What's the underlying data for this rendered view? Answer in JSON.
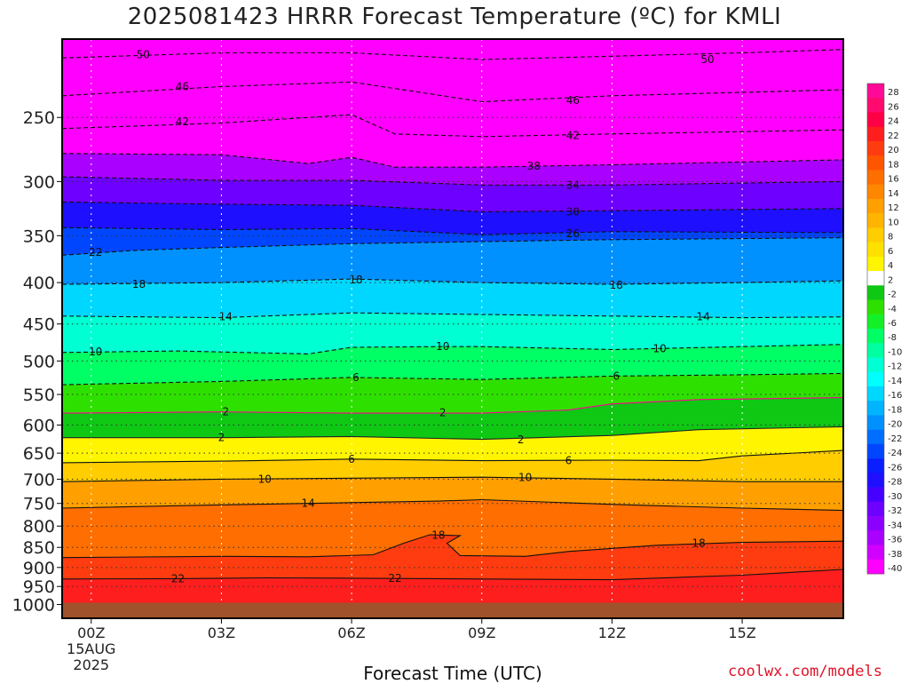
{
  "chart_data": {
    "type": "heatmap",
    "title": "2025081423 HRRR Forecast Temperature (ºC) for KMLI",
    "xlabel": "Forecast Time (UTC)",
    "ylabel": "",
    "credit": "coolwx.com/models",
    "x_ticks": [
      {
        "hour": 0,
        "label": "00Z",
        "sub": [
          "15AUG",
          "2025"
        ]
      },
      {
        "hour": 3,
        "label": "03Z"
      },
      {
        "hour": 6,
        "label": "06Z"
      },
      {
        "hour": 9,
        "label": "09Z"
      },
      {
        "hour": 12,
        "label": "12Z"
      },
      {
        "hour": 15,
        "label": "15Z"
      }
    ],
    "xlim": [
      -0.67,
      17.33
    ],
    "y_scale": "log",
    "ylim": [
      1040,
      200
    ],
    "y_ticks": [
      250,
      300,
      350,
      400,
      450,
      500,
      550,
      600,
      650,
      700,
      750,
      800,
      850,
      900,
      950,
      1000
    ],
    "surface_pressure": 995,
    "colorbar_levels": [
      28,
      26,
      24,
      22,
      20,
      18,
      16,
      14,
      12,
      10,
      8,
      6,
      4,
      2,
      -2,
      -4,
      -6,
      -8,
      -10,
      -12,
      -14,
      -16,
      -18,
      -20,
      -22,
      -24,
      -26,
      -28,
      -30,
      -32,
      -34,
      -36,
      -38,
      -40
    ],
    "colorbar_colors": [
      "#ff0a96",
      "#ff0a6e",
      "#ff0046",
      "#ff1e1e",
      "#ff3c0f",
      "#ff5500",
      "#ff6e00",
      "#ff8700",
      "#ffa000",
      "#ffb400",
      "#ffcd00",
      "#ffe100",
      "#fff500",
      "#ffffff",
      "#0ec814",
      "#2ee000",
      "#14f028",
      "#00ff64",
      "#00ffa0",
      "#00ffd2",
      "#00ffff",
      "#00d7ff",
      "#00b4ff",
      "#0091ff",
      "#006eff",
      "#0046ff",
      "#0a1eff",
      "#1e0fff",
      "#4600ff",
      "#6e00ff",
      "#8c00ff",
      "#aa00ff",
      "#d200ff",
      "#ff00ff"
    ],
    "surface_color": "#a0522d",
    "cold_extreme_color": "#ff00ff",
    "series": [
      {
        "temp": 22,
        "points": [
          [
            -0.67,
            930
          ],
          [
            2,
            929
          ],
          [
            4,
            927
          ],
          [
            6,
            928
          ],
          [
            9,
            930
          ],
          [
            12,
            932
          ],
          [
            15,
            920
          ],
          [
            17.33,
            905
          ]
        ]
      },
      {
        "temp": 18,
        "points": [
          [
            -0.67,
            875
          ],
          [
            3,
            872
          ],
          [
            5,
            873
          ],
          [
            6.5,
            868
          ],
          [
            7.2,
            840
          ],
          [
            7.8,
            820
          ],
          [
            8.5,
            822
          ],
          [
            8.2,
            840
          ],
          [
            8.5,
            870
          ],
          [
            10,
            872
          ],
          [
            11,
            860
          ],
          [
            13,
            845
          ],
          [
            15,
            838
          ],
          [
            17.33,
            835
          ]
        ]
      },
      {
        "temp": 14,
        "points": [
          [
            -0.67,
            760
          ],
          [
            2,
            755
          ],
          [
            5,
            750
          ],
          [
            8,
            745
          ],
          [
            9,
            742
          ],
          [
            12,
            752
          ],
          [
            15,
            760
          ],
          [
            17.33,
            765
          ]
        ]
      },
      {
        "temp": 10,
        "points": [
          [
            -0.67,
            705
          ],
          [
            3,
            700
          ],
          [
            6,
            698
          ],
          [
            9,
            696
          ],
          [
            12,
            700
          ],
          [
            15,
            705
          ],
          [
            17.33,
            705
          ]
        ]
      },
      {
        "temp": 6,
        "points": [
          [
            -0.67,
            668
          ],
          [
            3,
            665
          ],
          [
            6,
            661
          ],
          [
            9,
            664
          ],
          [
            12,
            663
          ],
          [
            14,
            664
          ],
          [
            15,
            655
          ],
          [
            17.33,
            645
          ]
        ]
      },
      {
        "temp": 2,
        "points": [
          [
            -0.67,
            622
          ],
          [
            3,
            622
          ],
          [
            6,
            620
          ],
          [
            9,
            625
          ],
          [
            12,
            618
          ],
          [
            14,
            608
          ],
          [
            17.33,
            603
          ]
        ]
      },
      {
        "temp": -2,
        "points": [
          [
            -0.67,
            580
          ],
          [
            3,
            578
          ],
          [
            6,
            580
          ],
          [
            9,
            580
          ],
          [
            11,
            575
          ],
          [
            12,
            565
          ],
          [
            14,
            558
          ],
          [
            17.33,
            555
          ]
        ]
      },
      {
        "temp": -6,
        "points": [
          [
            -0.67,
            535
          ],
          [
            3,
            530
          ],
          [
            6,
            524
          ],
          [
            9,
            527
          ],
          [
            12,
            522
          ],
          [
            15,
            520
          ],
          [
            17.33,
            518
          ]
        ]
      },
      {
        "temp": -10,
        "points": [
          [
            -0.67,
            488
          ],
          [
            2,
            486
          ],
          [
            5,
            490
          ],
          [
            6,
            481
          ],
          [
            8,
            480
          ],
          [
            9,
            480
          ],
          [
            12,
            484
          ],
          [
            15,
            480
          ],
          [
            17.33,
            477
          ]
        ]
      },
      {
        "temp": -14,
        "points": [
          [
            -0.67,
            440
          ],
          [
            3,
            442
          ],
          [
            6,
            436
          ],
          [
            9,
            438
          ],
          [
            12,
            440
          ],
          [
            15,
            442
          ],
          [
            17.33,
            441
          ]
        ]
      },
      {
        "temp": -18,
        "points": [
          [
            -0.67,
            402
          ],
          [
            3,
            400
          ],
          [
            6,
            396
          ],
          [
            9,
            400
          ],
          [
            12,
            402
          ],
          [
            15,
            400
          ],
          [
            17.33,
            398
          ]
        ]
      },
      {
        "temp": -22,
        "points": [
          [
            -0.67,
            370
          ],
          [
            1,
            365
          ],
          [
            3,
            362
          ],
          [
            6,
            358
          ],
          [
            9,
            356
          ],
          [
            12,
            354
          ],
          [
            17.33,
            352
          ]
        ]
      },
      {
        "temp": -26,
        "points": [
          [
            -0.67,
            342
          ],
          [
            3,
            344
          ],
          [
            6,
            343
          ],
          [
            9,
            349
          ],
          [
            12,
            346
          ],
          [
            17.33,
            347
          ]
        ]
      },
      {
        "temp": -30,
        "points": [
          [
            -0.67,
            318
          ],
          [
            3,
            320
          ],
          [
            6,
            321
          ],
          [
            9,
            327
          ],
          [
            12,
            326
          ],
          [
            17.33,
            324
          ]
        ]
      },
      {
        "temp": -34,
        "points": [
          [
            -0.67,
            296
          ],
          [
            3,
            299
          ],
          [
            6,
            299
          ],
          [
            9,
            303
          ],
          [
            12,
            303
          ],
          [
            17.33,
            300
          ]
        ]
      },
      {
        "temp": -38,
        "points": [
          [
            -0.67,
            277
          ],
          [
            3,
            278
          ],
          [
            5,
            285
          ],
          [
            6,
            280
          ],
          [
            7,
            288
          ],
          [
            9,
            288
          ],
          [
            12,
            286
          ],
          [
            17.33,
            282
          ]
        ]
      },
      {
        "temp": -42,
        "points": [
          [
            -0.67,
            258
          ],
          [
            3,
            254
          ],
          [
            6,
            248
          ],
          [
            7,
            262
          ],
          [
            9,
            264
          ],
          [
            12,
            262
          ],
          [
            17.33,
            259
          ]
        ]
      },
      {
        "temp": -46,
        "points": [
          [
            -0.67,
            235
          ],
          [
            3,
            229
          ],
          [
            6,
            226
          ],
          [
            9,
            239
          ],
          [
            12,
            235
          ],
          [
            17.33,
            231
          ]
        ]
      },
      {
        "temp": -50,
        "points": [
          [
            -0.67,
            211
          ],
          [
            3,
            208
          ],
          [
            6,
            208
          ],
          [
            9,
            212
          ],
          [
            12,
            210
          ],
          [
            15,
            208
          ],
          [
            17.33,
            206
          ]
        ]
      }
    ],
    "contour_labels": [
      {
        "text": "50",
        "x": 1.2,
        "p": 209
      },
      {
        "text": "50",
        "x": 14.2,
        "p": 212
      },
      {
        "text": "46",
        "x": 2.1,
        "p": 229
      },
      {
        "text": "46",
        "x": 11.1,
        "p": 238
      },
      {
        "text": "42",
        "x": 2.1,
        "p": 253
      },
      {
        "text": "42",
        "x": 11.1,
        "p": 263
      },
      {
        "text": "38",
        "x": 10.2,
        "p": 287
      },
      {
        "text": "34",
        "x": 11.1,
        "p": 303
      },
      {
        "text": "30",
        "x": 11.1,
        "p": 327
      },
      {
        "text": "26",
        "x": 11.1,
        "p": 348
      },
      {
        "text": "22",
        "x": 0.1,
        "p": 367
      },
      {
        "text": "18",
        "x": 1.1,
        "p": 402
      },
      {
        "text": "18",
        "x": 6.1,
        "p": 397
      },
      {
        "text": "18",
        "x": 12.1,
        "p": 403
      },
      {
        "text": "14",
        "x": 3.1,
        "p": 441
      },
      {
        "text": "14",
        "x": 14.1,
        "p": 441
      },
      {
        "text": "10",
        "x": 0.1,
        "p": 487
      },
      {
        "text": "10",
        "x": 8.1,
        "p": 480
      },
      {
        "text": "10",
        "x": 13.1,
        "p": 483
      },
      {
        "text": "6",
        "x": 6.1,
        "p": 524
      },
      {
        "text": "6",
        "x": 12.1,
        "p": 522
      },
      {
        "text": "2",
        "x": 3.1,
        "p": 578
      },
      {
        "text": "2",
        "x": 8.1,
        "p": 579
      },
      {
        "text": "2",
        "x": 3.0,
        "p": 622
      },
      {
        "text": "2",
        "x": 9.9,
        "p": 626
      },
      {
        "text": "6",
        "x": 6.0,
        "p": 661
      },
      {
        "text": "6",
        "x": 11.0,
        "p": 664
      },
      {
        "text": "10",
        "x": 4.0,
        "p": 700
      },
      {
        "text": "10",
        "x": 10.0,
        "p": 697
      },
      {
        "text": "14",
        "x": 5.0,
        "p": 750
      },
      {
        "text": "18",
        "x": 8.0,
        "p": 821
      },
      {
        "text": "18",
        "x": 14.0,
        "p": 840
      },
      {
        "text": "22",
        "x": 2.0,
        "p": 929
      },
      {
        "text": "22",
        "x": 7.0,
        "p": 928
      }
    ]
  }
}
